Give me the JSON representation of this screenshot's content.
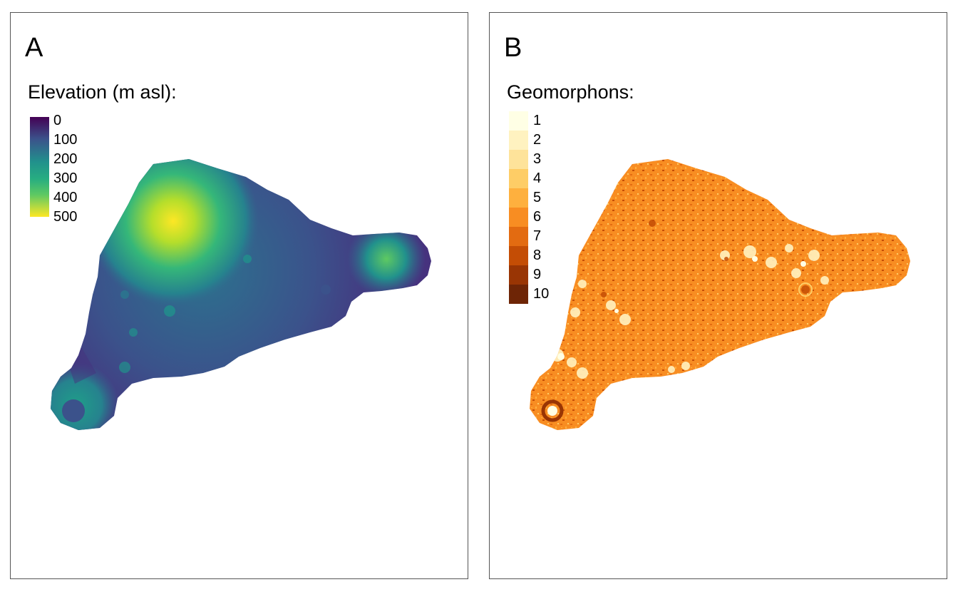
{
  "panels": [
    {
      "letter": "A",
      "legend_title": "Elevation (m asl):",
      "legend_type": "continuous",
      "palette": "viridis",
      "colors": [
        "#440154",
        "#3b528b",
        "#21918c",
        "#5ec962",
        "#fde725"
      ],
      "ticks": [
        "0",
        "100",
        "200",
        "300",
        "400",
        "500"
      ]
    },
    {
      "letter": "B",
      "legend_title": "Geomorphons:",
      "legend_type": "categorical",
      "categories": [
        {
          "label": "1",
          "color": "#ffffe5"
        },
        {
          "label": "2",
          "color": "#fff2c0"
        },
        {
          "label": "3",
          "color": "#fee39a"
        },
        {
          "label": "4",
          "color": "#fecd66"
        },
        {
          "label": "5",
          "color": "#feb03e"
        },
        {
          "label": "6",
          "color": "#f88d22"
        },
        {
          "label": "7",
          "color": "#e36b11"
        },
        {
          "label": "8",
          "color": "#c44d05"
        },
        {
          "label": "9",
          "color": "#993504"
        },
        {
          "label": "10",
          "color": "#6e2506"
        }
      ]
    }
  ]
}
